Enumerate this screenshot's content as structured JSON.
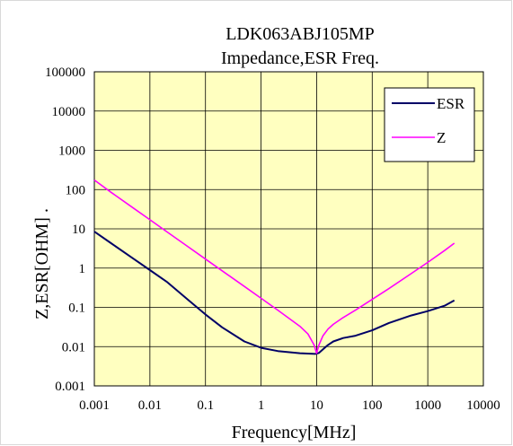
{
  "chart_data": {
    "type": "line",
    "title": "LDK063ABJ105MP",
    "subtitle": "Impedance,ESR Freq.",
    "xlabel": "Frequency[MHz]",
    "ylabel": "Z,ESR[OHM] .",
    "x_scale": "log",
    "y_scale": "log",
    "xlim": [
      0.001,
      10000
    ],
    "ylim": [
      0.001,
      100000
    ],
    "x_ticks": [
      "0.001",
      "0.01",
      "0.1",
      "1",
      "10",
      "100",
      "1000",
      "10000"
    ],
    "y_ticks": [
      "0.001",
      "0.01",
      "0.1",
      "1",
      "10",
      "100",
      "1000",
      "10000",
      "100000"
    ],
    "grid": true,
    "plot_background": "#ffffc0",
    "legend_position": "top-right",
    "series": [
      {
        "name": "ESR",
        "color": "#000066",
        "x": [
          0.001,
          0.002,
          0.005,
          0.01,
          0.02,
          0.05,
          0.1,
          0.2,
          0.5,
          1,
          2,
          5,
          9.5,
          11,
          13,
          16,
          20,
          30,
          50,
          100,
          200,
          500,
          1000,
          2000,
          3000
        ],
        "y": [
          8.5,
          4.3,
          1.75,
          0.89,
          0.45,
          0.15,
          0.066,
          0.031,
          0.0135,
          0.0093,
          0.0077,
          0.0068,
          0.0065,
          0.0069,
          0.0085,
          0.011,
          0.0135,
          0.0165,
          0.019,
          0.026,
          0.04,
          0.062,
          0.08,
          0.11,
          0.15
        ]
      },
      {
        "name": "Z",
        "color": "#ff00ff",
        "x": [
          0.001,
          0.002,
          0.005,
          0.01,
          0.02,
          0.05,
          0.1,
          0.2,
          0.5,
          1,
          2,
          5,
          7,
          9,
          10,
          11,
          13,
          16,
          20,
          30,
          50,
          100,
          200,
          500,
          1000,
          2000,
          3000
        ],
        "y": [
          175,
          85,
          34,
          17,
          8.5,
          3.4,
          1.7,
          0.85,
          0.34,
          0.17,
          0.085,
          0.033,
          0.021,
          0.011,
          0.0068,
          0.011,
          0.019,
          0.028,
          0.037,
          0.055,
          0.085,
          0.16,
          0.3,
          0.72,
          1.4,
          2.8,
          4.3
        ]
      }
    ]
  }
}
